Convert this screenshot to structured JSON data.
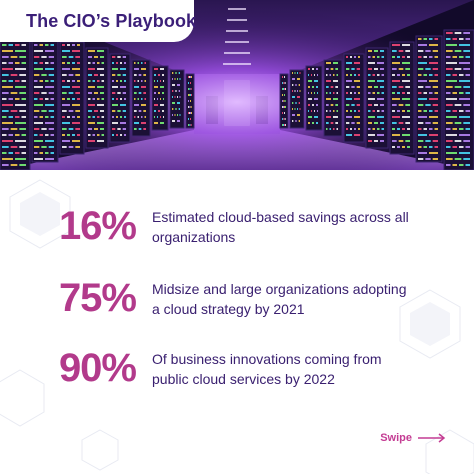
{
  "header": {
    "title": "The CIO’s Playbook"
  },
  "stats": [
    {
      "value": "16%",
      "description": "Estimated cloud-based savings across all organizations"
    },
    {
      "value": "75%",
      "description": "Midsize and large organizations adopting a cloud strategy by 2021"
    },
    {
      "value": "90%",
      "description": "Of business innovations coming from public cloud services by 2022"
    }
  ],
  "footer": {
    "swipe_label": "Swipe"
  },
  "colors": {
    "accent": "#b23a8b",
    "title": "#3b1f78",
    "text": "#3a2070",
    "hero_glow": "#a04ae0"
  },
  "icons": [
    "arrow-right-icon"
  ]
}
